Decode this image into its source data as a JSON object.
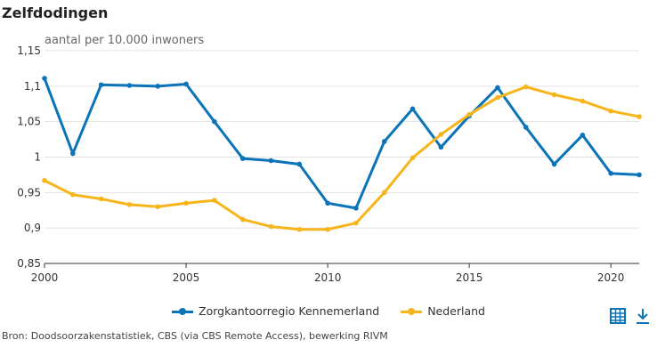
{
  "chart_data": {
    "type": "line",
    "title": "Zelfdodingen",
    "subtitle": "aantal per 10.000 inwoners",
    "x": [
      2000,
      2001,
      2002,
      2003,
      2004,
      2005,
      2006,
      2007,
      2008,
      2009,
      2010,
      2011,
      2012,
      2013,
      2014,
      2015,
      2016,
      2017,
      2018,
      2019,
      2020,
      2021
    ],
    "xlim": [
      2000,
      2021
    ],
    "ylim": [
      0.85,
      1.15
    ],
    "xticks": [
      2000,
      2005,
      2010,
      2015,
      2020
    ],
    "yticks": [
      0.85,
      0.9,
      0.95,
      1.0,
      1.05,
      1.1,
      1.15
    ],
    "ytick_labels": [
      "0,85",
      "0,9",
      "0,95",
      "1",
      "1,05",
      "1,1",
      "1,15"
    ],
    "grid": "horizontal",
    "legend_position": "bottom",
    "series": [
      {
        "name": "Zorgkantoorregio Kennemerland",
        "color": "#0b74b9",
        "values": [
          1.111,
          1.005,
          1.102,
          1.101,
          1.1,
          1.103,
          1.05,
          0.998,
          0.995,
          0.99,
          0.935,
          0.928,
          1.022,
          1.068,
          1.014,
          1.058,
          1.098,
          1.042,
          0.99,
          1.031,
          0.977,
          0.975
        ]
      },
      {
        "name": "Nederland",
        "color": "#f7b51c",
        "values": [
          0.967,
          0.947,
          0.941,
          0.933,
          0.93,
          0.935,
          0.939,
          0.912,
          0.902,
          0.898,
          0.898,
          0.907,
          0.95,
          0.999,
          1.032,
          1.06,
          1.084,
          1.099,
          1.088,
          1.079,
          1.065,
          1.057
        ]
      }
    ]
  },
  "source": "Bron: Doodsoorzakenstatistiek, CBS (via CBS Remote Access), bewerking RIVM",
  "tools": {
    "table_icon": "table-icon",
    "download_icon": "download-icon",
    "icon_color": "#0b74b9"
  }
}
